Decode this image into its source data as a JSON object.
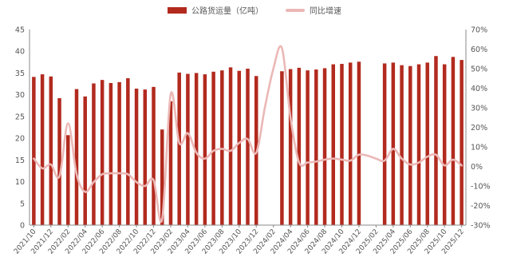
{
  "legend": {
    "bar_label": "公路货运量（亿吨）",
    "line_label": "同比增速"
  },
  "colors": {
    "bar": "#B22A1E",
    "line": "#EBB8B6"
  },
  "chart_data": {
    "type": "bar",
    "title": "",
    "xlabel": "",
    "ylabel": "",
    "ylim": [
      0,
      45
    ],
    "y2lim": [
      -30,
      70
    ],
    "y_ticks": [
      "0",
      "5",
      "10",
      "15",
      "20",
      "25",
      "30",
      "35",
      "40",
      "45"
    ],
    "y2_ticks": [
      "-30%",
      "-20%",
      "-10%",
      "0%",
      "10%",
      "20%",
      "30%",
      "40%",
      "50%",
      "60%",
      "70%"
    ],
    "x_tick_labels": [
      "2021/10",
      "2021/12",
      "2022/02",
      "2022/04",
      "2022/06",
      "2022/08",
      "2022/10",
      "2022/12",
      "2023/02",
      "2023/04",
      "2023/06",
      "2023/08",
      "2023/10",
      "2023/12",
      "2024/02",
      "2024/04",
      "2024/06",
      "2024/08",
      "2024/10",
      "2024/12",
      "2025/02",
      "2025/04",
      "2025/06",
      "2025/08",
      "2025/10",
      "2025/12"
    ],
    "categories": [
      "2021/10",
      "2021/11",
      "2021/12",
      "2022/01",
      "2022/02",
      "2022/03",
      "2022/04",
      "2022/05",
      "2022/06",
      "2022/07",
      "2022/08",
      "2022/09",
      "2022/10",
      "2022/11",
      "2022/12",
      "2023/01",
      "2023/02",
      "2023/03",
      "2023/04",
      "2023/05",
      "2023/06",
      "2023/07",
      "2023/08",
      "2023/09",
      "2023/10",
      "2023/11",
      "2023/12",
      "2024/01",
      "2024/02",
      "2024/03",
      "2024/04",
      "2024/05",
      "2024/06",
      "2024/07",
      "2024/08",
      "2024/09",
      "2024/10",
      "2024/11",
      "2024/12",
      "2025/01",
      "2025/02",
      "2025/03",
      "2025/04",
      "2025/05",
      "2025/06",
      "2025/07",
      "2025/08",
      "2025/09",
      "2025/10",
      "2025/11",
      "2025/12"
    ],
    "series": [
      {
        "name": "公路货运量（亿吨）",
        "type": "bar",
        "values": [
          34.1,
          34.7,
          34.2,
          29.2,
          20.7,
          31.3,
          29.6,
          32.6,
          33.4,
          32.7,
          32.9,
          33.8,
          31.4,
          31.2,
          31.8,
          22.0,
          28.5,
          35.1,
          34.8,
          35.0,
          34.7,
          35.3,
          35.6,
          36.3,
          35.5,
          36.0,
          34.3,
          null,
          null,
          35.4,
          35.9,
          36.2,
          35.6,
          35.8,
          36.1,
          37.0,
          37.1,
          37.4,
          37.6,
          null,
          null,
          37.2,
          37.4,
          36.8,
          36.6,
          37.0,
          37.4,
          38.9,
          37.0,
          38.7,
          38.0
        ]
      },
      {
        "name": "同比增速",
        "type": "line",
        "axis": "right",
        "values": [
          4.0,
          -1.0,
          1.0,
          -5.0,
          22.0,
          -4.0,
          -13.0,
          -8.0,
          -4.0,
          -3.5,
          -3.5,
          -4.0,
          -8.0,
          -10.0,
          -7.0,
          -27.0,
          37.0,
          12.0,
          17.0,
          7.0,
          4.0,
          8.0,
          9.0,
          8.0,
          12.0,
          14.0,
          7.0,
          30.0,
          50.0,
          60.5,
          25.0,
          2.0,
          2.0,
          2.5,
          3.5,
          4.0,
          3.5,
          3.0,
          6.0,
          5.5,
          4.0,
          3.0,
          9.0,
          4.0,
          1.0,
          2.0,
          5.0,
          6.0,
          0.5,
          3.5,
          0.5
        ]
      }
    ],
    "legend_position": "top-center",
    "grid": false
  }
}
